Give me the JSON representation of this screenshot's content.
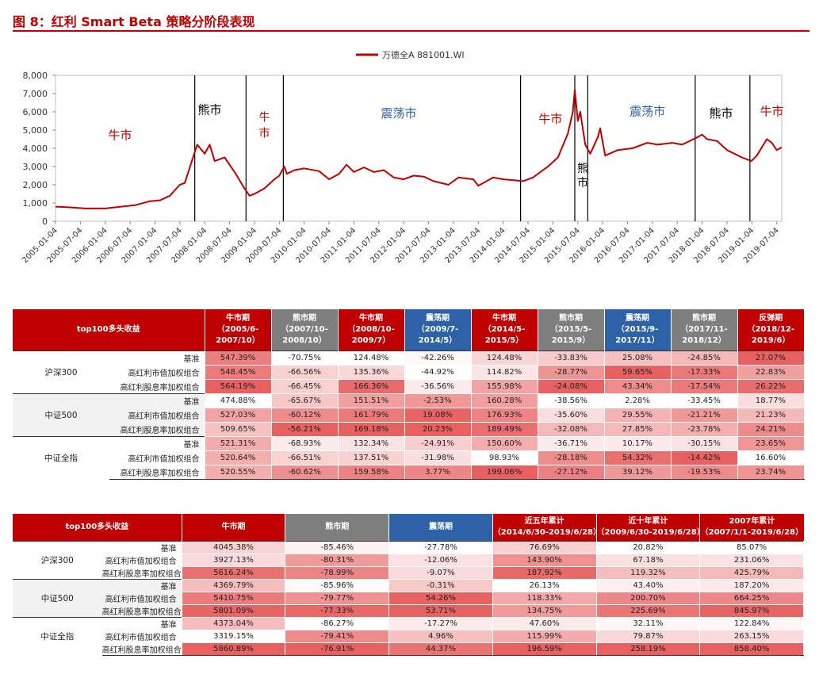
{
  "title": "图 8：红利 Smart Beta 策略分阶段表现",
  "chart_data": {
    "type": "line",
    "legend": "万德全A 881001.WI",
    "legend_position": "top-center",
    "ylim": [
      0,
      8000
    ],
    "yticks": [
      "0",
      "1,000",
      "2,000",
      "3,000",
      "4,000",
      "5,000",
      "6,000",
      "7,000",
      "8,000"
    ],
    "xticks": [
      "2005-01-04",
      "2005-07-04",
      "2006-01-04",
      "2006-07-04",
      "2007-01-04",
      "2007-07-04",
      "2008-01-04",
      "2008-07-04",
      "2009-01-04",
      "2009-07-04",
      "2010-01-04",
      "2010-07-04",
      "2011-01-04",
      "2011-07-04",
      "2012-01-04",
      "2012-07-04",
      "2013-01-04",
      "2013-07-04",
      "2014-01-04",
      "2014-07-04",
      "2015-01-04",
      "2015-07-04",
      "2016-01-04",
      "2016-07-04",
      "2017-01-04",
      "2017-07-04",
      "2018-01-04",
      "2018-07-04",
      "2019-01-04",
      "2019-07-04"
    ],
    "series": [
      {
        "name": "万德全A 881001.WI",
        "color": "#c00000",
        "points": [
          [
            2005.0,
            800
          ],
          [
            2005.3,
            760
          ],
          [
            2005.6,
            700
          ],
          [
            2006.0,
            700
          ],
          [
            2006.3,
            790
          ],
          [
            2006.6,
            880
          ],
          [
            2006.9,
            1100
          ],
          [
            2007.1,
            1150
          ],
          [
            2007.3,
            1400
          ],
          [
            2007.5,
            2000
          ],
          [
            2007.6,
            2100
          ],
          [
            2007.8,
            3800
          ],
          [
            2007.85,
            4200
          ],
          [
            2008.0,
            3700
          ],
          [
            2008.1,
            4200
          ],
          [
            2008.2,
            3300
          ],
          [
            2008.4,
            3500
          ],
          [
            2008.6,
            2700
          ],
          [
            2008.8,
            1800
          ],
          [
            2008.9,
            1400
          ],
          [
            2009.0,
            1500
          ],
          [
            2009.2,
            1800
          ],
          [
            2009.4,
            2300
          ],
          [
            2009.5,
            2500
          ],
          [
            2009.6,
            3000
          ],
          [
            2009.65,
            2600
          ],
          [
            2009.8,
            2800
          ],
          [
            2010.0,
            2900
          ],
          [
            2010.3,
            2750
          ],
          [
            2010.5,
            2300
          ],
          [
            2010.7,
            2600
          ],
          [
            2010.85,
            3100
          ],
          [
            2011.0,
            2700
          ],
          [
            2011.2,
            2950
          ],
          [
            2011.4,
            2700
          ],
          [
            2011.6,
            2800
          ],
          [
            2011.8,
            2400
          ],
          [
            2012.0,
            2300
          ],
          [
            2012.2,
            2500
          ],
          [
            2012.4,
            2450
          ],
          [
            2012.6,
            2200
          ],
          [
            2012.9,
            2000
          ],
          [
            2013.1,
            2400
          ],
          [
            2013.4,
            2300
          ],
          [
            2013.5,
            1950
          ],
          [
            2013.8,
            2400
          ],
          [
            2014.0,
            2300
          ],
          [
            2014.4,
            2200
          ],
          [
            2014.6,
            2400
          ],
          [
            2014.9,
            3000
          ],
          [
            2015.1,
            3500
          ],
          [
            2015.3,
            4800
          ],
          [
            2015.4,
            6000
          ],
          [
            2015.44,
            7200
          ],
          [
            2015.5,
            5500
          ],
          [
            2015.55,
            6000
          ],
          [
            2015.65,
            4200
          ],
          [
            2015.75,
            3700
          ],
          [
            2015.9,
            4600
          ],
          [
            2015.95,
            5100
          ],
          [
            2016.05,
            3600
          ],
          [
            2016.3,
            3900
          ],
          [
            2016.6,
            4000
          ],
          [
            2016.9,
            4300
          ],
          [
            2017.1,
            4200
          ],
          [
            2017.4,
            4300
          ],
          [
            2017.6,
            4200
          ],
          [
            2017.9,
            4600
          ],
          [
            2018.0,
            4750
          ],
          [
            2018.1,
            4500
          ],
          [
            2018.3,
            4400
          ],
          [
            2018.5,
            3900
          ],
          [
            2018.8,
            3500
          ],
          [
            2018.99,
            3300
          ],
          [
            2019.1,
            3600
          ],
          [
            2019.3,
            4500
          ],
          [
            2019.4,
            4300
          ],
          [
            2019.5,
            3900
          ],
          [
            2019.6,
            4050
          ]
        ]
      }
    ],
    "regime_markers": [
      2007.8,
      2008.83,
      2009.58,
      2014.35,
      2015.44,
      2015.7,
      2017.86,
      2018.96
    ],
    "annotations": [
      {
        "text": "牛市",
        "color": "#c00000",
        "x": 2006.3,
        "y": 4500
      },
      {
        "text": "熊市",
        "color": "#000000",
        "x": 2008.1,
        "y": 5900
      },
      {
        "text": "牛市",
        "color": "#c00000",
        "x": 2009.2,
        "y": 5500
      },
      {
        "text": "震荡市",
        "color": "#2e62a6",
        "x": 2011.9,
        "y": 5700
      },
      {
        "text": "牛市",
        "color": "#c00000",
        "x": 2014.95,
        "y": 5400
      },
      {
        "text": "熊市",
        "color": "#000000",
        "x": 2015.6,
        "y": 2700
      },
      {
        "text": "震荡市",
        "color": "#2e62a6",
        "x": 2016.9,
        "y": 5800
      },
      {
        "text": "熊市",
        "color": "#000000",
        "x": 2018.38,
        "y": 5700
      },
      {
        "text": "牛市",
        "color": "#c00000",
        "x": 2019.4,
        "y": 5800
      }
    ]
  },
  "colors": {
    "bull": "#c00000",
    "bear": "#7f7f7f",
    "range": "#2e62a6",
    "red_header": "#c00000",
    "band": "#f2f2f2"
  },
  "table1": {
    "corner": "top100多头收益",
    "headers": [
      {
        "lines": [
          "牛市期",
          "（2005/6-",
          "2007/10）"
        ],
        "kind": "bull"
      },
      {
        "lines": [
          "熊市期",
          "（2007/10-",
          "2008/10）"
        ],
        "kind": "bear"
      },
      {
        "lines": [
          "牛市期",
          "（2008/10-",
          "2009/7）"
        ],
        "kind": "bull"
      },
      {
        "lines": [
          "震荡期",
          "（2009/7-",
          "2014/5）"
        ],
        "kind": "range"
      },
      {
        "lines": [
          "牛市期",
          "（2014/5-",
          "2015/5）"
        ],
        "kind": "bull"
      },
      {
        "lines": [
          "熊市期",
          "（2015/5-",
          "2015/9）"
        ],
        "kind": "bear"
      },
      {
        "lines": [
          "震荡期",
          "（2015/9-",
          "2017/11）"
        ],
        "kind": "range"
      },
      {
        "lines": [
          "熊市期",
          "（2017/11-",
          "2018/12）"
        ],
        "kind": "bear"
      },
      {
        "lines": [
          "反弹期",
          "（2018/12-",
          "2019/6）"
        ],
        "kind": "bull"
      }
    ],
    "groups": [
      {
        "name": "沪深300",
        "rows": [
          {
            "label": "基准",
            "values": [
              "547.39%",
              "-70.75%",
              "124.48%",
              "-42.26%",
              "124.48%",
              "-33.83%",
              "25.08%",
              "-24.85%",
              "27.07%"
            ]
          },
          {
            "label": "高红利市值加权组合",
            "values": [
              "548.45%",
              "-66.56%",
              "135.36%",
              "-44.92%",
              "114.82%",
              "-28.77%",
              "59.65%",
              "-17.33%",
              "22.83%"
            ]
          },
          {
            "label": "高红利股息率加权组合",
            "values": [
              "564.19%",
              "-66.45%",
              "166.36%",
              "-36.56%",
              "155.98%",
              "-24.08%",
              "43.34%",
              "-17.54%",
              "26.22%"
            ]
          }
        ]
      },
      {
        "name": "中证500",
        "rows": [
          {
            "label": "基准",
            "values": [
              "474.88%",
              "-65.67%",
              "151.51%",
              "-2.53%",
              "160.28%",
              "-38.56%",
              "2.28%",
              "-33.45%",
              "18.77%"
            ]
          },
          {
            "label": "高红利市值加权组合",
            "values": [
              "527.03%",
              "-60.12%",
              "161.79%",
              "19.08%",
              "176.93%",
              "-35.60%",
              "29.55%",
              "-21.21%",
              "21.23%"
            ]
          },
          {
            "label": "高红利股息率加权组合",
            "values": [
              "509.65%",
              "-56.21%",
              "169.18%",
              "20.23%",
              "189.49%",
              "-32.08%",
              "27.85%",
              "-23.78%",
              "24.21%"
            ]
          }
        ]
      },
      {
        "name": "中证全指",
        "rows": [
          {
            "label": "基准",
            "values": [
              "521.31%",
              "-68.93%",
              "132.34%",
              "-24.91%",
              "150.60%",
              "-36.71%",
              "10.17%",
              "-30.15%",
              "23.65%"
            ]
          },
          {
            "label": "高红利市值加权组合",
            "values": [
              "520.64%",
              "-66.51%",
              "137.51%",
              "-31.98%",
              "98.93%",
              "-28.18%",
              "54.32%",
              "-14.42%",
              "16.60%"
            ]
          },
          {
            "label": "高红利股息率加权组合",
            "values": [
              "520.55%",
              "-60.62%",
              "159.58%",
              "3.77%",
              "199.06%",
              "-27.12%",
              "39.12%",
              "-19.53%",
              "23.74%"
            ]
          }
        ]
      }
    ]
  },
  "table2": {
    "corner": "top100多头收益",
    "headers": [
      {
        "lines": [
          "牛市期"
        ],
        "kind": "bull"
      },
      {
        "lines": [
          "熊市期"
        ],
        "kind": "bear"
      },
      {
        "lines": [
          "震荡期"
        ],
        "kind": "range"
      },
      {
        "lines": [
          "近五年累计",
          "（2014/6/30-2019/6/28）"
        ],
        "kind": "bull"
      },
      {
        "lines": [
          "近十年累计",
          "（2009/6/30-2019/6/28）"
        ],
        "kind": "bull"
      },
      {
        "lines": [
          "2007年累计",
          "（2007/1/1-2019/6/28）"
        ],
        "kind": "bull"
      }
    ],
    "groups": [
      {
        "name": "沪深300",
        "rows": [
          {
            "label": "基准",
            "values": [
              "4045.38%",
              "-85.46%",
              "-27.78%",
              "76.69%",
              "20.82%",
              "85.07%"
            ]
          },
          {
            "label": "高红利市值加权组合",
            "values": [
              "3927.13%",
              "-80.31%",
              "-12.06%",
              "143.90%",
              "67.18%",
              "231.06%"
            ]
          },
          {
            "label": "高红利股息率加权组合",
            "values": [
              "5616.24%",
              "-78.99%",
              "-9.07%",
              "187.92%",
              "119.32%",
              "425.79%"
            ]
          }
        ]
      },
      {
        "name": "中证500",
        "rows": [
          {
            "label": "基准",
            "values": [
              "4369.79%",
              "-85.96%",
              "-0.31%",
              "26.13%",
              "43.40%",
              "187.20%"
            ]
          },
          {
            "label": "高红利市值加权组合",
            "values": [
              "5410.75%",
              "-79.77%",
              "54.26%",
              "118.33%",
              "200.70%",
              "664.25%"
            ]
          },
          {
            "label": "高红利股息率加权组合",
            "values": [
              "5801.09%",
              "-77.33%",
              "53.71%",
              "134.75%",
              "225.69%",
              "845.97%"
            ]
          }
        ]
      },
      {
        "name": "中证全指",
        "rows": [
          {
            "label": "基准",
            "values": [
              "4373.04%",
              "-86.27%",
              "-17.27%",
              "47.60%",
              "32.11%",
              "122.84%"
            ]
          },
          {
            "label": "高红利市值加权组合",
            "values": [
              "3319.15%",
              "-79.41%",
              "4.96%",
              "115.99%",
              "79.87%",
              "263.15%"
            ]
          },
          {
            "label": "高红利股息率加权组合",
            "values": [
              "5860.89%",
              "-76.91%",
              "44.37%",
              "196.59%",
              "258.19%",
              "858.40%"
            ]
          }
        ]
      }
    ]
  }
}
